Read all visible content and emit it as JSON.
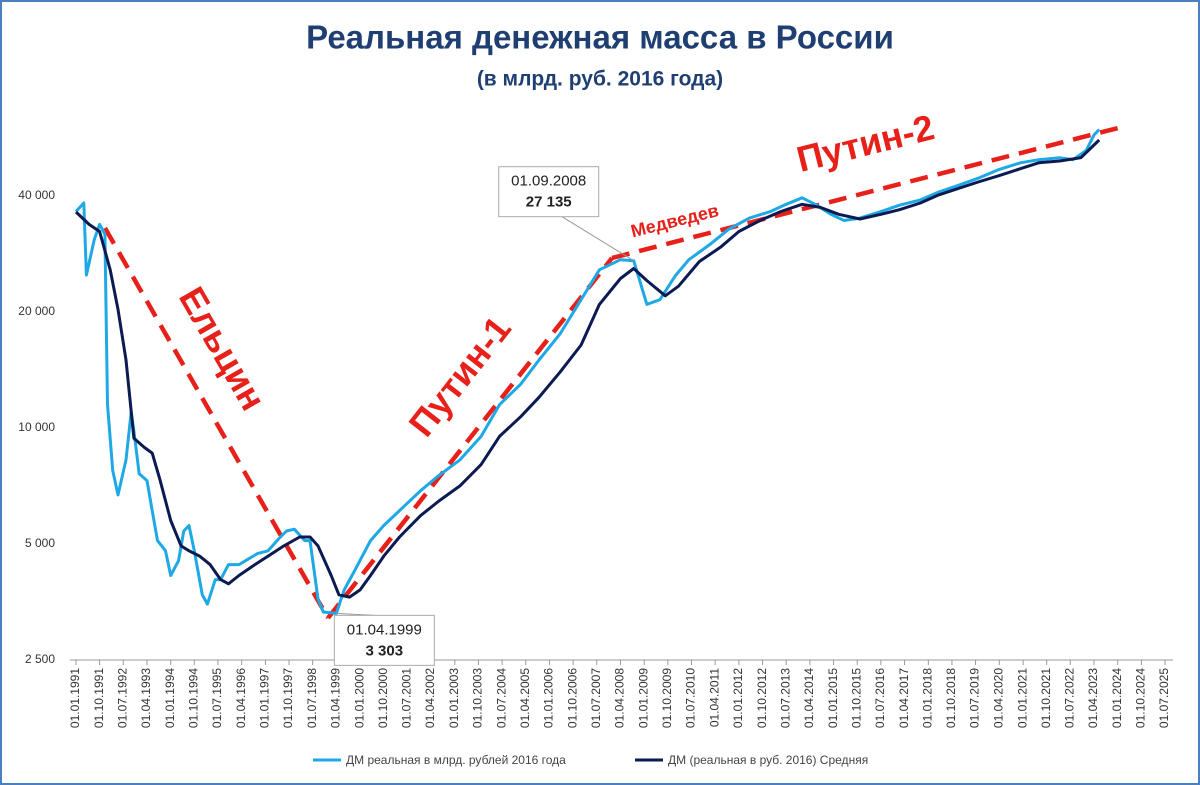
{
  "chart_data": {
    "type": "line",
    "title": "Реальная денежная масса в России",
    "subtitle": "(в млрд. руб. 2016 года)",
    "log_scale": true,
    "grid": false,
    "legend": "bottom",
    "ylim": [
      2500,
      64000
    ],
    "yticks": [
      {
        "value": 2500,
        "label": "2 500"
      },
      {
        "value": 5000,
        "label": "5 000"
      },
      {
        "value": 10000,
        "label": "10 000"
      },
      {
        "value": 20000,
        "label": "20 000"
      },
      {
        "value": 40000,
        "label": "40 000"
      }
    ],
    "xlim": [
      "1991-01-01",
      "2025-07-01"
    ],
    "xticks": [
      {
        "value": "1991-01-01",
        "label": "01.01.1991"
      },
      {
        "value": "1991-10-01",
        "label": "01.10.1991"
      },
      {
        "value": "1992-07-01",
        "label": "01.07.1992"
      },
      {
        "value": "1993-04-01",
        "label": "01.04.1993"
      },
      {
        "value": "1994-01-01",
        "label": "01.01.1994"
      },
      {
        "value": "1994-10-01",
        "label": "01.10.1994"
      },
      {
        "value": "1995-07-01",
        "label": "01.07.1995"
      },
      {
        "value": "1996-04-01",
        "label": "01.04.1996"
      },
      {
        "value": "1997-01-01",
        "label": "01.01.1997"
      },
      {
        "value": "1997-10-01",
        "label": "01.10.1997"
      },
      {
        "value": "1998-07-01",
        "label": "01.07.1998"
      },
      {
        "value": "1999-04-01",
        "label": "01.04.1999"
      },
      {
        "value": "2000-01-01",
        "label": "01.01.2000"
      },
      {
        "value": "2000-10-01",
        "label": "01.10.2000"
      },
      {
        "value": "2001-07-01",
        "label": "01.07.2001"
      },
      {
        "value": "2002-04-01",
        "label": "01.04.2002"
      },
      {
        "value": "2003-01-01",
        "label": "01.01.2003"
      },
      {
        "value": "2003-10-01",
        "label": "01.10.2003"
      },
      {
        "value": "2004-07-01",
        "label": "01.07.2004"
      },
      {
        "value": "2005-04-01",
        "label": "01.04.2005"
      },
      {
        "value": "2006-01-01",
        "label": "01.01.2006"
      },
      {
        "value": "2006-10-01",
        "label": "01.10.2006"
      },
      {
        "value": "2007-07-01",
        "label": "01.07.2007"
      },
      {
        "value": "2008-04-01",
        "label": "01.04.2008"
      },
      {
        "value": "2009-01-01",
        "label": "01.01.2009"
      },
      {
        "value": "2009-10-01",
        "label": "01.10.2009"
      },
      {
        "value": "2010-07-01",
        "label": "01.07.2010"
      },
      {
        "value": "2011-04-01",
        "label": "01.04.2011"
      },
      {
        "value": "2012-01-01",
        "label": "01.01.2012"
      },
      {
        "value": "2012-10-01",
        "label": "01.10.2012"
      },
      {
        "value": "2013-07-01",
        "label": "01.07.2013"
      },
      {
        "value": "2014-04-01",
        "label": "01.04.2014"
      },
      {
        "value": "2015-01-01",
        "label": "01.01.2015"
      },
      {
        "value": "2015-10-01",
        "label": "01.10.2015"
      },
      {
        "value": "2016-07-01",
        "label": "01.07.2016"
      },
      {
        "value": "2017-04-01",
        "label": "01.04.2017"
      },
      {
        "value": "2018-01-01",
        "label": "01.01.2018"
      },
      {
        "value": "2018-10-01",
        "label": "01.10.2018"
      },
      {
        "value": "2019-07-01",
        "label": "01.07.2019"
      },
      {
        "value": "2020-04-01",
        "label": "01.04.2020"
      },
      {
        "value": "2021-01-01",
        "label": "01.01.2021"
      },
      {
        "value": "2021-10-01",
        "label": "01.10.2021"
      },
      {
        "value": "2022-07-01",
        "label": "01.07.2022"
      },
      {
        "value": "2023-04-01",
        "label": "01.04.2023"
      },
      {
        "value": "2024-01-01",
        "label": "01.01.2024"
      },
      {
        "value": "2024-10-01",
        "label": "01.10.2024"
      },
      {
        "value": "2025-07-01",
        "label": "01.07.2025"
      }
    ],
    "series": [
      {
        "name": "ДМ реальная в млрд. рублей 2016 года",
        "color": "#1ea8e6",
        "x": [
          "1991-01-01",
          "1991-04-01",
          "1991-05-01",
          "1991-08-01",
          "1991-10-01",
          "1991-12-01",
          "1992-01-01",
          "1992-03-01",
          "1992-05-01",
          "1992-08-01",
          "1992-10-01",
          "1992-11-01",
          "1993-01-01",
          "1993-04-01",
          "1993-06-01",
          "1993-08-01",
          "1993-11-01",
          "1994-01-01",
          "1994-04-01",
          "1994-06-01",
          "1994-08-01",
          "1994-10-01",
          "1995-01-01",
          "1995-03-01",
          "1995-06-01",
          "1995-08-01",
          "1995-11-01",
          "1996-03-01",
          "1996-07-01",
          "1996-10-01",
          "1997-02-01",
          "1997-06-01",
          "1997-09-01",
          "1997-12-01",
          "1998-04-01",
          "1998-06-01",
          "1998-09-01",
          "1998-11-01",
          "1999-04-01",
          "1999-07-01",
          "1999-11-01",
          "2000-05-01",
          "2000-10-01",
          "2001-04-01",
          "2001-12-01",
          "2002-07-01",
          "2003-03-01",
          "2003-11-01",
          "2004-06-01",
          "2005-02-01",
          "2005-09-01",
          "2006-05-01",
          "2007-01-01",
          "2007-08-01",
          "2008-04-01",
          "2008-09-01",
          "2009-02-01",
          "2009-07-01",
          "2010-01-01",
          "2010-06-01",
          "2011-02-01",
          "2011-09-01",
          "2012-05-01",
          "2013-01-01",
          "2013-07-01",
          "2014-01-01",
          "2014-06-01",
          "2014-12-01",
          "2015-05-01",
          "2015-11-01",
          "2016-07-01",
          "2017-02-01",
          "2017-10-01",
          "2018-05-01",
          "2019-01-01",
          "2019-08-01",
          "2020-04-01",
          "2020-12-01",
          "2021-07-01",
          "2022-03-01",
          "2022-08-01",
          "2023-01-01",
          "2023-04-01",
          "2023-06-01"
        ],
        "values": [
          36400,
          38300,
          24900,
          30800,
          33700,
          31800,
          11500,
          7760,
          6700,
          8260,
          11000,
          9800,
          7600,
          7300,
          6100,
          5100,
          4800,
          4140,
          4520,
          5400,
          5580,
          4800,
          3690,
          3490,
          4040,
          4040,
          4420,
          4420,
          4590,
          4720,
          4800,
          5150,
          5400,
          5460,
          5100,
          5100,
          3600,
          3330,
          3303,
          3800,
          4270,
          5100,
          5580,
          6100,
          6870,
          7530,
          8260,
          9500,
          11480,
          12980,
          15000,
          17500,
          21500,
          25700,
          27300,
          27135,
          20900,
          21500,
          24900,
          27300,
          29900,
          32700,
          35000,
          36400,
          38000,
          39500,
          38000,
          35800,
          34500,
          35000,
          36400,
          37800,
          39000,
          40900,
          42700,
          44400,
          46800,
          48700,
          49600,
          50200,
          49600,
          52400,
          57500,
          59400
        ]
      },
      {
        "name": "ДМ (реальная в руб. 2016) Средняя",
        "color": "#0c1a52",
        "x": [
          "1991-01-01",
          "1991-06-01",
          "1991-10-01",
          "1992-02-01",
          "1992-05-01",
          "1992-08-01",
          "1992-11-01",
          "1993-03-01",
          "1993-06-01",
          "1993-09-01",
          "1994-01-01",
          "1994-05-01",
          "1994-08-01",
          "1994-12-01",
          "1995-04-01",
          "1995-08-01",
          "1995-11-01",
          "1996-03-01",
          "1996-09-01",
          "1997-02-01",
          "1997-08-01",
          "1998-02-01",
          "1998-06-01",
          "1998-09-01",
          "1999-02-01",
          "1999-05-01",
          "1999-09-01",
          "2000-01-01",
          "2000-05-01",
          "2000-10-01",
          "2001-04-01",
          "2001-12-01",
          "2002-07-01",
          "2003-03-01",
          "2003-11-01",
          "2004-06-01",
          "2005-02-01",
          "2005-09-01",
          "2006-05-01",
          "2007-01-01",
          "2007-08-01",
          "2008-04-01",
          "2008-09-01",
          "2009-02-01",
          "2009-09-01",
          "2010-02-01",
          "2010-10-01",
          "2011-06-01",
          "2012-01-01",
          "2012-09-01",
          "2013-05-01",
          "2014-01-01",
          "2014-08-01",
          "2015-03-01",
          "2015-11-01",
          "2016-07-01",
          "2017-02-01",
          "2017-10-01",
          "2018-05-01",
          "2019-01-01",
          "2019-08-01",
          "2020-04-01",
          "2020-12-01",
          "2021-07-01",
          "2022-03-01",
          "2022-11-01",
          "2023-06-01"
        ],
        "values": [
          36300,
          33700,
          32300,
          25700,
          20300,
          15000,
          9400,
          8900,
          8600,
          7300,
          5750,
          4940,
          4800,
          4650,
          4420,
          4040,
          3940,
          4140,
          4420,
          4650,
          4940,
          5210,
          5210,
          4940,
          4140,
          3690,
          3640,
          3800,
          4140,
          4650,
          5210,
          5920,
          6460,
          7070,
          8030,
          9500,
          10690,
          12000,
          13930,
          16400,
          20900,
          24400,
          25900,
          24100,
          22000,
          23300,
          27000,
          29400,
          32300,
          34500,
          36400,
          38000,
          37300,
          35800,
          34800,
          35800,
          36800,
          38300,
          40200,
          41900,
          43400,
          45100,
          47000,
          48700,
          49200,
          50200,
          55800
        ]
      }
    ],
    "annotations": [
      {
        "date": "2008-09-01",
        "date_label": "01.09.2008",
        "value": 27135,
        "value_label": "27 135"
      },
      {
        "date": "1999-04-01",
        "date_label": "01.04.1999",
        "value": 3303,
        "value_label": "3 303"
      }
    ],
    "trend_labels": [
      "Ельцин",
      "Путин-1",
      "Медведев",
      "Путин-2"
    ]
  }
}
